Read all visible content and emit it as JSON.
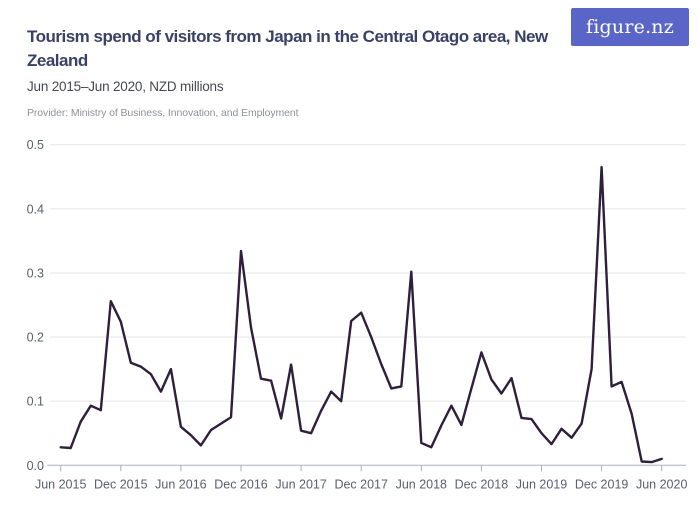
{
  "header": {
    "title": "Tourism spend of visitors from Japan in the Central Otago area, New Zealand",
    "subtitle": "Jun 2015–Jun 2020, NZD millions",
    "provider": "Provider: Ministry of Business, Innovation, and Employment",
    "logo_text": "figure.nz"
  },
  "colors": {
    "accent": "#5A65C8",
    "line": "#2F1E3E",
    "title_text": "#3A4166",
    "subtitle_text": "#45484E",
    "provider_text": "#8E9298",
    "axis_label": "#59606F",
    "gridline": "#E4E6E9",
    "axis_line": "#AAB0B8"
  },
  "chart_data": {
    "type": "line",
    "title": "Tourism spend of visitors from Japan in the Central Otago area, New Zealand",
    "subtitle": "Jun 2015–Jun 2020, NZD millions",
    "unit": "NZD millions",
    "xlabel": "",
    "ylabel": "",
    "ylim": [
      0,
      0.5
    ],
    "grid": "horizontal",
    "legend": "none",
    "x": [
      "2015-06",
      "2015-07",
      "2015-08",
      "2015-09",
      "2015-10",
      "2015-11",
      "2015-12",
      "2016-01",
      "2016-02",
      "2016-03",
      "2016-04",
      "2016-05",
      "2016-06",
      "2016-07",
      "2016-08",
      "2016-09",
      "2016-10",
      "2016-11",
      "2016-12",
      "2017-01",
      "2017-02",
      "2017-03",
      "2017-04",
      "2017-05",
      "2017-06",
      "2017-07",
      "2017-08",
      "2017-09",
      "2017-10",
      "2017-11",
      "2017-12",
      "2018-01",
      "2018-02",
      "2018-03",
      "2018-04",
      "2018-05",
      "2018-06",
      "2018-07",
      "2018-08",
      "2018-09",
      "2018-10",
      "2018-11",
      "2018-12",
      "2019-01",
      "2019-02",
      "2019-03",
      "2019-04",
      "2019-05",
      "2019-06",
      "2019-07",
      "2019-08",
      "2019-09",
      "2019-10",
      "2019-11",
      "2019-12",
      "2020-01",
      "2020-02",
      "2020-03",
      "2020-04",
      "2020-05",
      "2020-06"
    ],
    "values": [
      0.028,
      0.027,
      0.068,
      0.093,
      0.086,
      0.256,
      0.224,
      0.16,
      0.154,
      0.142,
      0.115,
      0.15,
      0.06,
      0.047,
      0.031,
      0.055,
      0.065,
      0.075,
      0.334,
      0.215,
      0.135,
      0.132,
      0.073,
      0.157,
      0.054,
      0.05,
      0.085,
      0.115,
      0.1,
      0.225,
      0.238,
      0.2,
      0.158,
      0.12,
      0.123,
      0.302,
      0.035,
      0.028,
      0.062,
      0.093,
      0.063,
      0.12,
      0.176,
      0.134,
      0.112,
      0.136,
      0.074,
      0.072,
      0.05,
      0.033,
      0.057,
      0.043,
      0.065,
      0.15,
      0.465,
      0.123,
      0.13,
      0.08,
      0.006,
      0.005,
      0.01
    ],
    "x_ticks": [
      {
        "month_index": 0,
        "label": "Jun 2015"
      },
      {
        "month_index": 6,
        "label": "Dec 2015"
      },
      {
        "month_index": 12,
        "label": "Jun 2016"
      },
      {
        "month_index": 18,
        "label": "Dec 2016"
      },
      {
        "month_index": 24,
        "label": "Jun 2017"
      },
      {
        "month_index": 30,
        "label": "Dec 2017"
      },
      {
        "month_index": 36,
        "label": "Jun 2018"
      },
      {
        "month_index": 42,
        "label": "Dec 2018"
      },
      {
        "month_index": 48,
        "label": "Jun 2019"
      },
      {
        "month_index": 54,
        "label": "Dec 2019"
      },
      {
        "month_index": 60,
        "label": "Jun 2020"
      }
    ],
    "y_ticks": [
      {
        "value": 0.0,
        "label": "0.0"
      },
      {
        "value": 0.1,
        "label": "0.1"
      },
      {
        "value": 0.2,
        "label": "0.2"
      },
      {
        "value": 0.3,
        "label": "0.3"
      },
      {
        "value": 0.4,
        "label": "0.4"
      },
      {
        "value": 0.5,
        "label": "0.5"
      }
    ]
  }
}
